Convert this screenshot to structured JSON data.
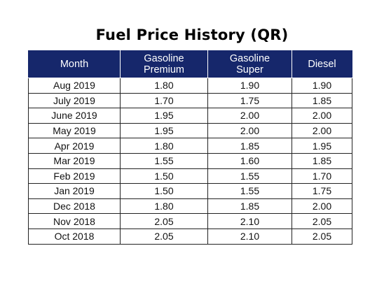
{
  "title": "Fuel Price History (QR)",
  "table": {
    "headers": [
      {
        "lines": [
          "Month"
        ]
      },
      {
        "lines": [
          "Gasoline",
          "Premium"
        ]
      },
      {
        "lines": [
          "Gasoline",
          "Super"
        ]
      },
      {
        "lines": [
          "Diesel"
        ]
      }
    ],
    "rows": [
      [
        "Aug 2019",
        "1.80",
        "1.90",
        "1.90"
      ],
      [
        "July 2019",
        "1.70",
        "1.75",
        "1.85"
      ],
      [
        "June 2019",
        "1.95",
        "2.00",
        "2.00"
      ],
      [
        "May 2019",
        "1.95",
        "2.00",
        "2.00"
      ],
      [
        "Apr 2019",
        "1.80",
        "1.85",
        "1.95"
      ],
      [
        "Mar 2019",
        "1.55",
        "1.60",
        "1.85"
      ],
      [
        "Feb 2019",
        "1.50",
        "1.55",
        "1.70"
      ],
      [
        "Jan 2019",
        "1.50",
        "1.55",
        "1.75"
      ],
      [
        "Dec 2018",
        "1.80",
        "1.85",
        "2.00"
      ],
      [
        "Nov 2018",
        "2.05",
        "2.10",
        "2.05"
      ],
      [
        "Oct 2018",
        "2.05",
        "2.10",
        "2.05"
      ]
    ]
  },
  "colors": {
    "header_background": "#16276b",
    "header_text": "#ffffff",
    "grid_lines": "#222222"
  }
}
